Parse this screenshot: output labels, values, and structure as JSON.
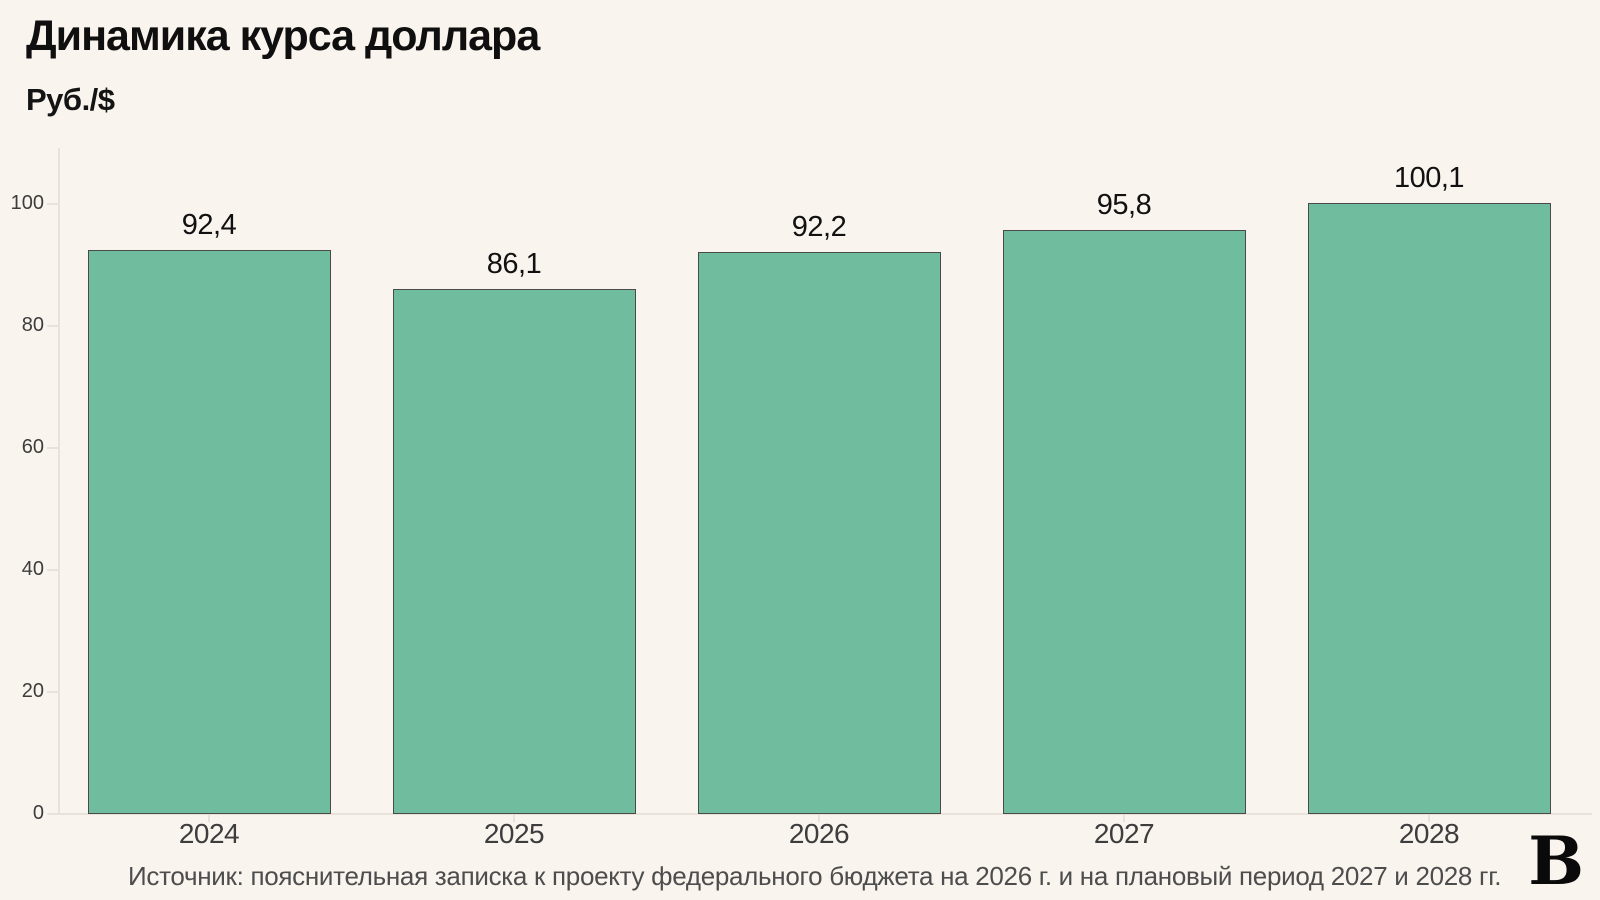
{
  "header": {
    "title": "Динамика курса доллара",
    "units_label": "Руб./$"
  },
  "chart_data": {
    "type": "bar",
    "title": "Динамика курса доллара",
    "ylabel": "Руб./$",
    "xlabel": "",
    "categories": [
      "2024",
      "2025",
      "2026",
      "2027",
      "2028"
    ],
    "values": [
      92.4,
      86.1,
      92.2,
      95.8,
      100.1
    ],
    "value_labels": [
      "92,4",
      "86,1",
      "92,2",
      "95,8",
      "100,1"
    ],
    "yticks": [
      0,
      20,
      40,
      60,
      80,
      100
    ],
    "ylim": [
      0,
      109
    ],
    "grid": false,
    "legend": "none",
    "bar_color": "#6fbc9e",
    "bar_border_color": "#4a4a4a"
  },
  "footer": {
    "source": "Источник: пояснительная записка к проекту федерального бюджета на 2026 г. и на плановый период 2027 и 2028 гг.",
    "logo": "В"
  },
  "colors": {
    "background": "#faf4ee",
    "title_text": "#0f0f0f",
    "value_text": "#111111",
    "axis_text": "#3d3d3d",
    "source_text": "#4d4d4d",
    "axis_line": "#e9e2da"
  }
}
